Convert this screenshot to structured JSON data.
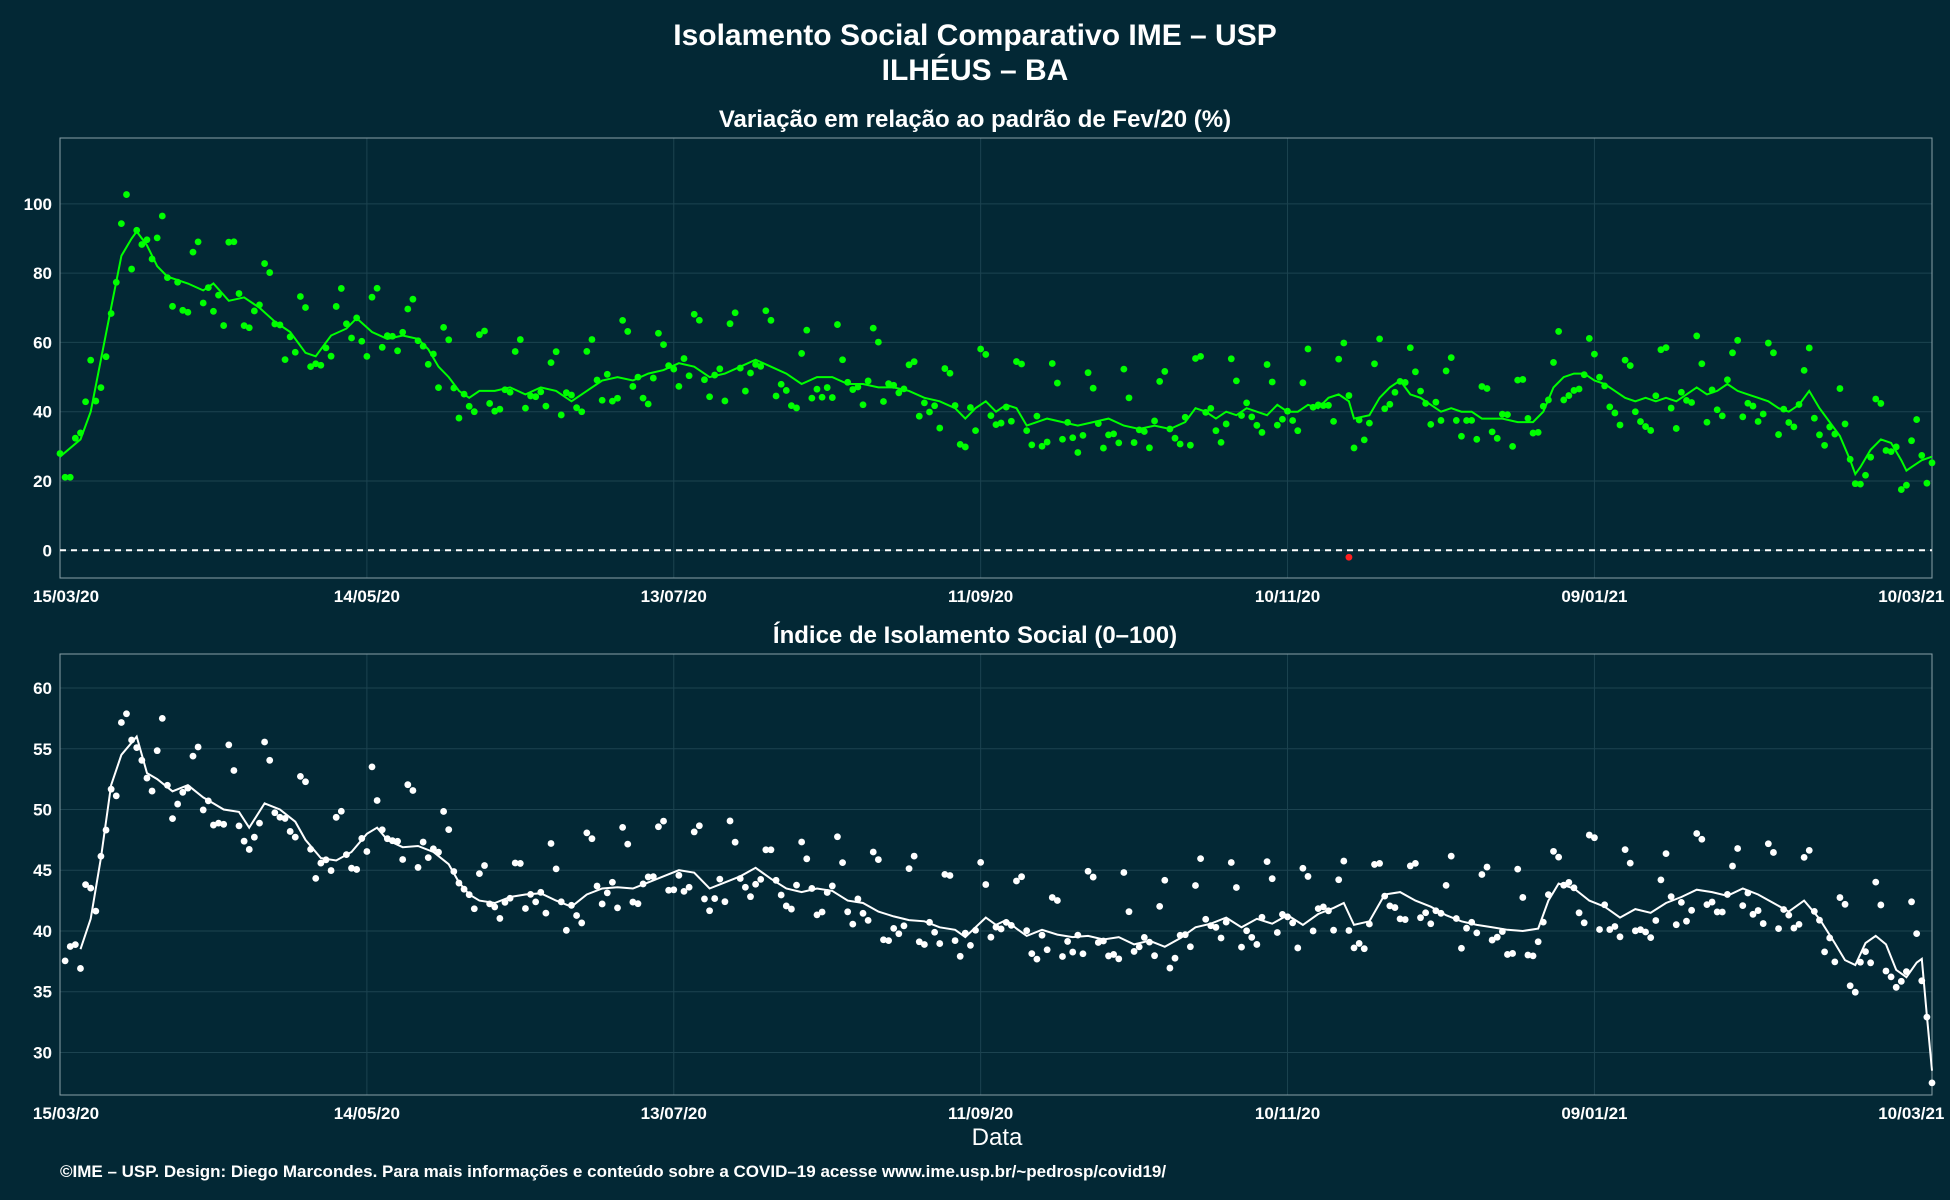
{
  "page": {
    "title_line1": "Isolamento Social Comparativo IME – USP",
    "title_line2": "ILHÉUS – BA",
    "xlabel": "Data",
    "footer": "©IME – USP. Design: Diego Marcondes. Para mais informações e conteúdo sobre a COVID–19 acesse www.ime.usp.br/~pedrosp/covid19/"
  },
  "colors": {
    "background": "#032835",
    "grid": "#1c4350",
    "panel_border": "#8aa0a8",
    "top_series": "#00ff00",
    "top_negative": "#ff2020",
    "bottom_series": "#ffffff"
  },
  "chart_data": [
    {
      "type": "scatter",
      "title": "Variação em relação ao padrão de Fev/20 (%)",
      "x_tick_labels": [
        "15/03/20",
        "14/05/20",
        "13/07/20",
        "11/09/20",
        "10/11/20",
        "09/01/21",
        "10/03/21"
      ],
      "y_ticks": [
        0,
        20,
        40,
        60,
        80,
        100
      ],
      "ylim": [
        -8,
        119
      ],
      "xlim_days": [
        0,
        366
      ],
      "reference_line": 0,
      "moving_average": [
        [
          0,
          27
        ],
        [
          4,
          32
        ],
        [
          6,
          40
        ],
        [
          8,
          55
        ],
        [
          10,
          70
        ],
        [
          12,
          85
        ],
        [
          14,
          90
        ],
        [
          15,
          92
        ],
        [
          17,
          88
        ],
        [
          19,
          82
        ],
        [
          21,
          79
        ],
        [
          25,
          77
        ],
        [
          28,
          75
        ],
        [
          30,
          77
        ],
        [
          33,
          72
        ],
        [
          36,
          73
        ],
        [
          39,
          70
        ],
        [
          42,
          66
        ],
        [
          45,
          63
        ],
        [
          48,
          57
        ],
        [
          50,
          56
        ],
        [
          53,
          62
        ],
        [
          56,
          64
        ],
        [
          58,
          67
        ],
        [
          61,
          63
        ],
        [
          64,
          61
        ],
        [
          67,
          62
        ],
        [
          70,
          61
        ],
        [
          72,
          58
        ],
        [
          74,
          53
        ],
        [
          76,
          50
        ],
        [
          78,
          46
        ],
        [
          80,
          44
        ],
        [
          82,
          46
        ],
        [
          85,
          46
        ],
        [
          88,
          47
        ],
        [
          91,
          45
        ],
        [
          94,
          47
        ],
        [
          97,
          46
        ],
        [
          100,
          43
        ],
        [
          103,
          46
        ],
        [
          106,
          49
        ],
        [
          109,
          50
        ],
        [
          112,
          49
        ],
        [
          115,
          51
        ],
        [
          118,
          52
        ],
        [
          121,
          54
        ],
        [
          124,
          53
        ],
        [
          127,
          50
        ],
        [
          130,
          51
        ],
        [
          133,
          53
        ],
        [
          136,
          55
        ],
        [
          139,
          53
        ],
        [
          142,
          51
        ],
        [
          145,
          48
        ],
        [
          148,
          50
        ],
        [
          151,
          50
        ],
        [
          154,
          48
        ],
        [
          157,
          48
        ],
        [
          160,
          47
        ],
        [
          163,
          47
        ],
        [
          166,
          46
        ],
        [
          169,
          44
        ],
        [
          172,
          43
        ],
        [
          175,
          41
        ],
        [
          177,
          38
        ],
        [
          179,
          41
        ],
        [
          181,
          43
        ],
        [
          183,
          40
        ],
        [
          185,
          42
        ],
        [
          187,
          41
        ],
        [
          189,
          36
        ],
        [
          191,
          37
        ],
        [
          193,
          38
        ],
        [
          196,
          37
        ],
        [
          199,
          36
        ],
        [
          202,
          37
        ],
        [
          205,
          38
        ],
        [
          208,
          36
        ],
        [
          211,
          35
        ],
        [
          214,
          36
        ],
        [
          217,
          35
        ],
        [
          220,
          37
        ],
        [
          222,
          41
        ],
        [
          224,
          40
        ],
        [
          226,
          38
        ],
        [
          228,
          40
        ],
        [
          230,
          39
        ],
        [
          232,
          41
        ],
        [
          234,
          40
        ],
        [
          236,
          39
        ],
        [
          238,
          42
        ],
        [
          240,
          40
        ],
        [
          242,
          40
        ],
        [
          244,
          42
        ],
        [
          246,
          41
        ],
        [
          248,
          44
        ],
        [
          250,
          45
        ],
        [
          252,
          43
        ],
        [
          253,
          38
        ],
        [
          256,
          39
        ],
        [
          258,
          44
        ],
        [
          260,
          47
        ],
        [
          262,
          49
        ],
        [
          264,
          45
        ],
        [
          266,
          44
        ],
        [
          268,
          42
        ],
        [
          270,
          40
        ],
        [
          272,
          41
        ],
        [
          274,
          40
        ],
        [
          276,
          40
        ],
        [
          278,
          38
        ],
        [
          280,
          38
        ],
        [
          282,
          38
        ],
        [
          285,
          37
        ],
        [
          288,
          37
        ],
        [
          290,
          40
        ],
        [
          292,
          47
        ],
        [
          294,
          50
        ],
        [
          296,
          51
        ],
        [
          298,
          51
        ],
        [
          300,
          49
        ],
        [
          302,
          48
        ],
        [
          304,
          46
        ],
        [
          306,
          44
        ],
        [
          308,
          43
        ],
        [
          310,
          44
        ],
        [
          312,
          43
        ],
        [
          314,
          44
        ],
        [
          316,
          43
        ],
        [
          318,
          45
        ],
        [
          320,
          47
        ],
        [
          322,
          45
        ],
        [
          324,
          46
        ],
        [
          326,
          48
        ],
        [
          328,
          46
        ],
        [
          330,
          45
        ],
        [
          332,
          44
        ],
        [
          334,
          43
        ],
        [
          336,
          41
        ],
        [
          338,
          40
        ],
        [
          340,
          42
        ],
        [
          342,
          46
        ],
        [
          344,
          41
        ],
        [
          346,
          37
        ],
        [
          348,
          33
        ],
        [
          350,
          26
        ],
        [
          351,
          22
        ],
        [
          352,
          24
        ],
        [
          354,
          29
        ],
        [
          356,
          32
        ],
        [
          358,
          31
        ],
        [
          360,
          26
        ],
        [
          361,
          23
        ],
        [
          362,
          24
        ],
        [
          364,
          26
        ],
        [
          366,
          27
        ]
      ]
    },
    {
      "type": "scatter",
      "title": "Índice de Isolamento Social (0–100)",
      "x_tick_labels": [
        "15/03/20",
        "14/05/20",
        "13/07/20",
        "11/09/20",
        "10/11/20",
        "09/01/21",
        "10/03/21"
      ],
      "y_ticks": [
        30,
        35,
        40,
        45,
        50,
        55,
        60
      ],
      "ylim": [
        26.5,
        62.8
      ],
      "xlim_days": [
        0,
        366
      ],
      "moving_average": [
        [
          4,
          38.5
        ],
        [
          6,
          41
        ],
        [
          8,
          46
        ],
        [
          10,
          52
        ],
        [
          12,
          54.5
        ],
        [
          14,
          55.5
        ],
        [
          15,
          56
        ],
        [
          17,
          53
        ],
        [
          19,
          52.5
        ],
        [
          22,
          51.5
        ],
        [
          25,
          52
        ],
        [
          28,
          51
        ],
        [
          30,
          50.5
        ],
        [
          32,
          50
        ],
        [
          35,
          49.8
        ],
        [
          37,
          48.5
        ],
        [
          40,
          50.5
        ],
        [
          43,
          50
        ],
        [
          46,
          49
        ],
        [
          48,
          47.5
        ],
        [
          51,
          46
        ],
        [
          54,
          45.8
        ],
        [
          57,
          46.5
        ],
        [
          60,
          48
        ],
        [
          62,
          48.5
        ],
        [
          64,
          47.5
        ],
        [
          67,
          46.9
        ],
        [
          70,
          47
        ],
        [
          73,
          46.5
        ],
        [
          76,
          45.5
        ],
        [
          78,
          44
        ],
        [
          80,
          43
        ],
        [
          82,
          42.5
        ],
        [
          85,
          42.3
        ],
        [
          88,
          42.8
        ],
        [
          91,
          43
        ],
        [
          94,
          43.1
        ],
        [
          97,
          42.5
        ],
        [
          100,
          42
        ],
        [
          103,
          43
        ],
        [
          106,
          43.5
        ],
        [
          109,
          43.6
        ],
        [
          112,
          43.5
        ],
        [
          115,
          44
        ],
        [
          118,
          44.5
        ],
        [
          121,
          45
        ],
        [
          124,
          44.8
        ],
        [
          127,
          43.5
        ],
        [
          130,
          44
        ],
        [
          133,
          44.5
        ],
        [
          136,
          45.2
        ],
        [
          139,
          44.3
        ],
        [
          142,
          43.5
        ],
        [
          145,
          43.2
        ],
        [
          148,
          43.5
        ],
        [
          151,
          43.3
        ],
        [
          154,
          42.5
        ],
        [
          157,
          42.3
        ],
        [
          160,
          41.6
        ],
        [
          163,
          41.2
        ],
        [
          166,
          40.9
        ],
        [
          169,
          40.8
        ],
        [
          172,
          40.3
        ],
        [
          175,
          40.1
        ],
        [
          177,
          39.5
        ],
        [
          179,
          40.3
        ],
        [
          181,
          41.1
        ],
        [
          183,
          40.5
        ],
        [
          185,
          40.9
        ],
        [
          187,
          40.2
        ],
        [
          189,
          39.6
        ],
        [
          192,
          40.1
        ],
        [
          195,
          39.7
        ],
        [
          198,
          39.5
        ],
        [
          201,
          39.6
        ],
        [
          204,
          39.3
        ],
        [
          207,
          39.5
        ],
        [
          210,
          38.9
        ],
        [
          213,
          39.2
        ],
        [
          216,
          38.7
        ],
        [
          219,
          39.4
        ],
        [
          222,
          40.3
        ],
        [
          225,
          40.6
        ],
        [
          228,
          41.1
        ],
        [
          231,
          40.3
        ],
        [
          234,
          41.0
        ],
        [
          237,
          40.6
        ],
        [
          240,
          41.3
        ],
        [
          243,
          40.5
        ],
        [
          246,
          41.4
        ],
        [
          249,
          41.9
        ],
        [
          251,
          42.3
        ],
        [
          253,
          40.5
        ],
        [
          256,
          40.8
        ],
        [
          259,
          43
        ],
        [
          262,
          43.2
        ],
        [
          265,
          42.5
        ],
        [
          268,
          42
        ],
        [
          271,
          41.3
        ],
        [
          274,
          40.8
        ],
        [
          277,
          40.5
        ],
        [
          280,
          40.3
        ],
        [
          283,
          40.1
        ],
        [
          286,
          40
        ],
        [
          289,
          40.2
        ],
        [
          291,
          42.5
        ],
        [
          293,
          43.9
        ],
        [
          296,
          43.5
        ],
        [
          299,
          42.5
        ],
        [
          302,
          42
        ],
        [
          305,
          41.1
        ],
        [
          308,
          41.8
        ],
        [
          311,
          41.5
        ],
        [
          314,
          42.3
        ],
        [
          317,
          42.8
        ],
        [
          320,
          43.4
        ],
        [
          323,
          43.2
        ],
        [
          326,
          42.9
        ],
        [
          329,
          43.5
        ],
        [
          332,
          43
        ],
        [
          335,
          42.3
        ],
        [
          338,
          41.6
        ],
        [
          341,
          42.5
        ],
        [
          344,
          41
        ],
        [
          347,
          39
        ],
        [
          349,
          37.6
        ],
        [
          351,
          37.2
        ],
        [
          353,
          39
        ],
        [
          355,
          39.6
        ],
        [
          357,
          38.9
        ],
        [
          359,
          36.8
        ],
        [
          361,
          36.2
        ],
        [
          363,
          37.4
        ],
        [
          364,
          37.7
        ],
        [
          365,
          33
        ],
        [
          366,
          28.5
        ]
      ]
    }
  ]
}
